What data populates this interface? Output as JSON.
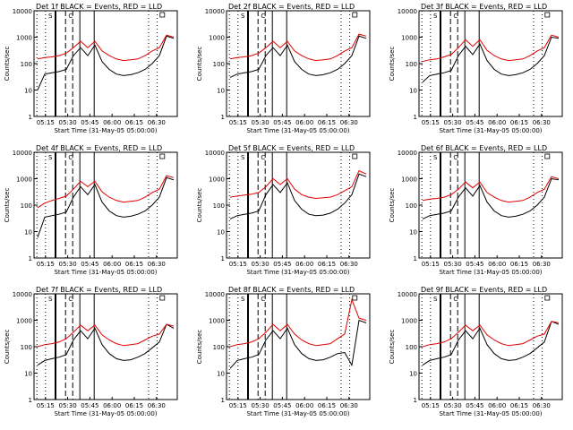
{
  "chart_data": [
    {
      "type": "line",
      "title": "Det 1f BLACK = Events, RED = LLD",
      "xlabel": "Start Time (31-May-05 05:00:00)",
      "ylabel": "Counts/sec",
      "yscale": "log",
      "ylim": [
        1,
        10000
      ],
      "x_tick_labels": [
        "05:15",
        "05:30",
        "05:45",
        "06:00",
        "06:15",
        "06:30"
      ],
      "y_tick_labels": [
        "1",
        "10",
        "100",
        "1000",
        "10000"
      ],
      "marker_labels": [
        "S",
        "C"
      ],
      "series": [
        {
          "color": "#000000",
          "values": [
            10,
            40,
            45,
            50,
            60,
            200,
            400,
            200,
            500,
            120,
            60,
            40,
            35,
            38,
            45,
            60,
            100,
            200,
            1100,
            900
          ]
        },
        {
          "color": "#e00000",
          "values": [
            150,
            170,
            180,
            200,
            250,
            400,
            700,
            400,
            700,
            300,
            200,
            150,
            130,
            140,
            150,
            200,
            300,
            400,
            1200,
            1000
          ]
        }
      ]
    },
    {
      "type": "line",
      "title": "Det 2f BLACK = Events, RED = LLD",
      "xlabel": "Start Time (31-May-05 05:00:00)",
      "ylabel": "Counts/sec",
      "yscale": "log",
      "ylim": [
        1,
        10000
      ],
      "x_tick_labels": [
        "05:15",
        "05:30",
        "05:45",
        "06:00",
        "06:15",
        "06:30"
      ],
      "y_tick_labels": [
        "1",
        "10",
        "100",
        "1000",
        "10000"
      ],
      "marker_labels": [
        "S",
        "C"
      ],
      "series": [
        {
          "color": "#000000",
          "values": [
            30,
            40,
            45,
            50,
            60,
            200,
            400,
            200,
            500,
            120,
            60,
            40,
            35,
            38,
            45,
            60,
            100,
            200,
            1100,
            900
          ]
        },
        {
          "color": "#e00000",
          "values": [
            150,
            170,
            180,
            200,
            250,
            400,
            700,
            400,
            700,
            300,
            200,
            150,
            130,
            140,
            150,
            200,
            300,
            400,
            1300,
            1100
          ]
        }
      ]
    },
    {
      "type": "line",
      "title": "Det 3f BLACK = Events, RED = LLD",
      "xlabel": "Start Time (31-May-05 05:00:00)",
      "ylabel": "Counts/sec",
      "yscale": "log",
      "ylim": [
        1,
        10000
      ],
      "x_tick_labels": [
        "05:15",
        "05:30",
        "05:45",
        "06:00",
        "06:15",
        "06:30"
      ],
      "y_tick_labels": [
        "1",
        "10",
        "100",
        "1000",
        "10000"
      ],
      "marker_labels": [
        "S",
        "C"
      ],
      "series": [
        {
          "color": "#000000",
          "values": [
            20,
            35,
            40,
            45,
            55,
            200,
            450,
            220,
            550,
            130,
            60,
            40,
            35,
            38,
            45,
            60,
            100,
            200,
            1000,
            900
          ]
        },
        {
          "color": "#e00000",
          "values": [
            120,
            140,
            150,
            180,
            220,
            400,
            800,
            450,
            800,
            320,
            200,
            150,
            130,
            140,
            150,
            200,
            300,
            400,
            1200,
            1000
          ]
        }
      ]
    },
    {
      "type": "line",
      "title": "Det 4f BLACK = Events, RED = LLD",
      "xlabel": "Start Time (31-May-05 05:00:00)",
      "ylabel": "Counts/sec",
      "yscale": "log",
      "ylim": [
        1,
        10000
      ],
      "x_tick_labels": [
        "05:15",
        "05:30",
        "05:45",
        "06:00",
        "06:15",
        "06:30"
      ],
      "y_tick_labels": [
        "1",
        "10",
        "100",
        "1000",
        "10000"
      ],
      "marker_labels": [
        "S",
        "C"
      ],
      "series": [
        {
          "color": "#000000",
          "values": [
            6,
            35,
            40,
            45,
            55,
            200,
            500,
            250,
            600,
            130,
            60,
            40,
            35,
            38,
            45,
            60,
            100,
            200,
            1100,
            900
          ]
        },
        {
          "color": "#e00000",
          "values": [
            80,
            120,
            150,
            180,
            220,
            400,
            800,
            500,
            800,
            320,
            200,
            150,
            130,
            140,
            150,
            200,
            300,
            400,
            1300,
            1100
          ]
        }
      ]
    },
    {
      "type": "line",
      "title": "Det 5f BLACK = Events, RED = LLD",
      "xlabel": "Start Time (31-May-05 05:00:00)",
      "ylabel": "Counts/sec",
      "yscale": "log",
      "ylim": [
        1,
        10000
      ],
      "x_tick_labels": [
        "05:15",
        "05:30",
        "05:45",
        "06:00",
        "06:15",
        "06:30"
      ],
      "y_tick_labels": [
        "1",
        "10",
        "100",
        "1000",
        "10000"
      ],
      "marker_labels": [
        "S",
        "C"
      ],
      "series": [
        {
          "color": "#000000",
          "values": [
            30,
            40,
            45,
            50,
            60,
            250,
            600,
            300,
            700,
            150,
            70,
            45,
            40,
            42,
            50,
            70,
            120,
            250,
            1500,
            1200
          ]
        },
        {
          "color": "#e00000",
          "values": [
            200,
            220,
            240,
            260,
            300,
            500,
            1000,
            600,
            1000,
            400,
            250,
            200,
            180,
            190,
            200,
            250,
            350,
            500,
            2000,
            1500
          ]
        }
      ]
    },
    {
      "type": "line",
      "title": "Det 6f BLACK = Events, RED = LLD",
      "xlabel": "Start Time (31-May-05 05:00:00)",
      "ylabel": "Counts/sec",
      "yscale": "log",
      "ylim": [
        1,
        10000
      ],
      "x_tick_labels": [
        "05:15",
        "05:30",
        "05:45",
        "06:00",
        "06:15",
        "06:30"
      ],
      "y_tick_labels": [
        "1",
        "10",
        "100",
        "1000",
        "10000"
      ],
      "marker_labels": [
        "S",
        "C"
      ],
      "series": [
        {
          "color": "#000000",
          "values": [
            30,
            40,
            45,
            50,
            60,
            200,
            450,
            220,
            550,
            130,
            60,
            40,
            35,
            38,
            45,
            60,
            100,
            200,
            1000,
            900
          ]
        },
        {
          "color": "#e00000",
          "values": [
            150,
            170,
            180,
            200,
            250,
            400,
            750,
            450,
            750,
            300,
            200,
            150,
            130,
            140,
            150,
            200,
            300,
            400,
            1200,
            1000
          ]
        }
      ]
    },
    {
      "type": "line",
      "title": "Det 7f BLACK = Events, RED = LLD",
      "xlabel": "Start Time (31-May-05 05:00:00)",
      "ylabel": "Counts/sec",
      "yscale": "log",
      "ylim": [
        1,
        10000
      ],
      "x_tick_labels": [
        "05:15",
        "05:30",
        "05:45",
        "06:00",
        "06:15",
        "06:30"
      ],
      "y_tick_labels": [
        "1",
        "10",
        "100",
        "1000",
        "10000"
      ],
      "marker_labels": [
        "S",
        "C"
      ],
      "series": [
        {
          "color": "#000000",
          "values": [
            20,
            30,
            35,
            40,
            50,
            180,
            400,
            200,
            500,
            120,
            55,
            35,
            30,
            32,
            40,
            55,
            90,
            150,
            700,
            500
          ]
        },
        {
          "color": "#e00000",
          "values": [
            100,
            120,
            130,
            150,
            200,
            350,
            650,
            400,
            650,
            280,
            180,
            130,
            110,
            120,
            130,
            180,
            250,
            300,
            700,
            600
          ]
        }
      ]
    },
    {
      "type": "line",
      "title": "Det 8f BLACK = Events, RED = LLD",
      "xlabel": "Start Time (31-May-05 05:00:00)",
      "ylabel": "Counts/sec",
      "yscale": "log",
      "ylim": [
        1,
        10000
      ],
      "x_tick_labels": [
        "05:15",
        "05:30",
        "05:45",
        "06:00",
        "06:15",
        "06:30"
      ],
      "y_tick_labels": [
        "1",
        "10",
        "100",
        "1000",
        "10000"
      ],
      "marker_labels": [
        "S",
        "C"
      ],
      "series": [
        {
          "color": "#000000",
          "values": [
            15,
            30,
            35,
            40,
            50,
            180,
            400,
            200,
            500,
            120,
            55,
            35,
            30,
            32,
            40,
            55,
            60,
            20,
            1000,
            800
          ]
        },
        {
          "color": "#e00000",
          "values": [
            100,
            120,
            130,
            150,
            200,
            350,
            700,
            400,
            700,
            300,
            180,
            130,
            110,
            120,
            130,
            200,
            300,
            6000,
            1200,
            1000
          ]
        }
      ]
    },
    {
      "type": "line",
      "title": "Det 9f BLACK = Events, RED = LLD",
      "xlabel": "Start Time (31-May-05 05:00:00)",
      "ylabel": "Counts/sec",
      "yscale": "log",
      "ylim": [
        1,
        10000
      ],
      "x_tick_labels": [
        "05:15",
        "05:30",
        "05:45",
        "06:00",
        "06:15",
        "06:30"
      ],
      "y_tick_labels": [
        "1",
        "10",
        "100",
        "1000",
        "10000"
      ],
      "marker_labels": [
        "S",
        "C"
      ],
      "series": [
        {
          "color": "#000000",
          "values": [
            20,
            30,
            35,
            40,
            50,
            180,
            400,
            200,
            500,
            120,
            55,
            35,
            30,
            32,
            40,
            55,
            90,
            150,
            900,
            700
          ]
        },
        {
          "color": "#e00000",
          "values": [
            100,
            120,
            130,
            150,
            200,
            350,
            650,
            400,
            650,
            280,
            180,
            130,
            110,
            120,
            130,
            180,
            250,
            300,
            900,
            800
          ]
        }
      ]
    }
  ]
}
